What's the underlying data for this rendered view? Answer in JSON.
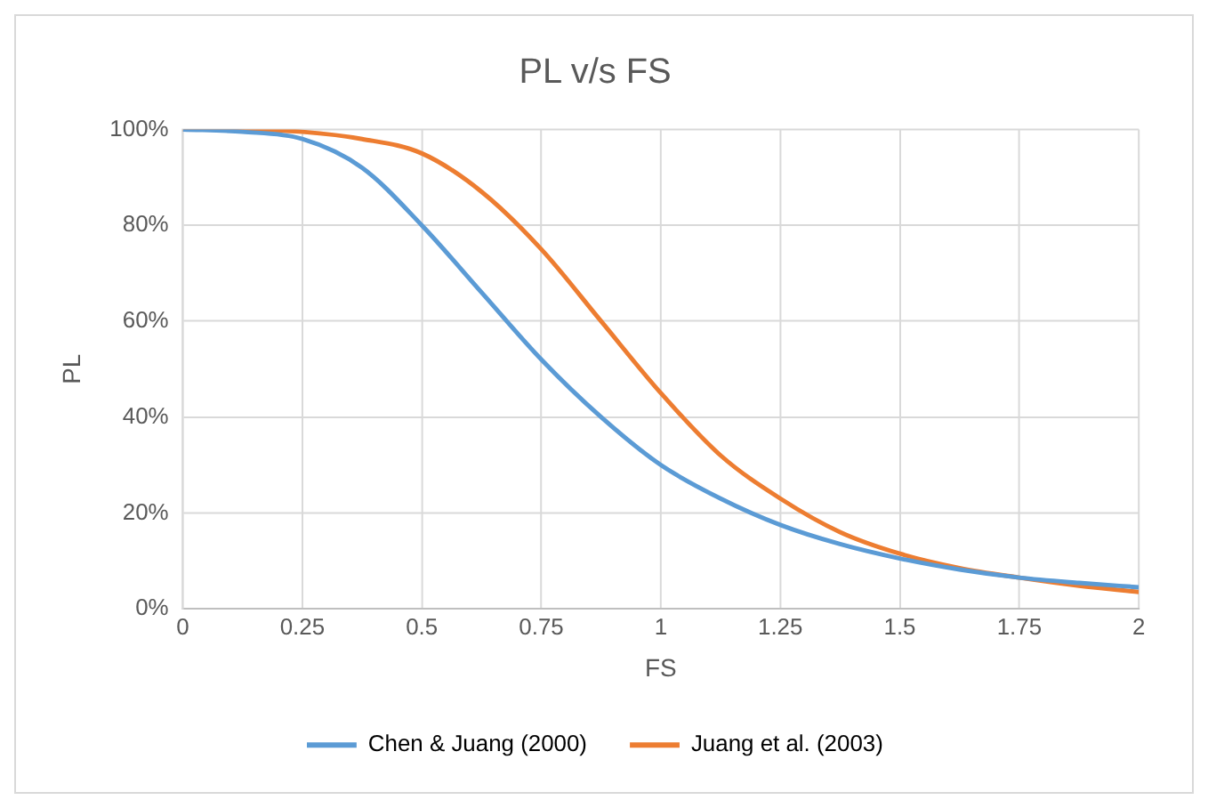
{
  "chart_data": {
    "type": "line",
    "title": "PL v/s FS",
    "xlabel": "FS",
    "ylabel": "PL",
    "xlim": [
      0,
      2
    ],
    "xticks": [
      0,
      0.25,
      0.5,
      0.75,
      1,
      1.25,
      1.5,
      1.75,
      2
    ],
    "ylim": [
      0,
      100
    ],
    "yticks": [
      {
        "value": 0,
        "label": "0%"
      },
      {
        "value": 20,
        "label": "20%"
      },
      {
        "value": 40,
        "label": "40%"
      },
      {
        "value": 60,
        "label": "60%"
      },
      {
        "value": 80,
        "label": "80%"
      },
      {
        "value": 100,
        "label": "100%"
      }
    ],
    "grid": true,
    "legend": "bottom",
    "marker": "none",
    "line_style": "solid",
    "series": [
      {
        "name": "Chen & Juang (2000)",
        "color": "#5b9bd5",
        "x": [
          0,
          0.125,
          0.25,
          0.375,
          0.5,
          0.625,
          0.75,
          0.875,
          1,
          1.125,
          1.25,
          1.375,
          1.5,
          1.625,
          1.75,
          1.875,
          2
        ],
        "values": [
          100,
          99.5,
          98,
          92,
          80,
          66,
          52,
          40,
          30,
          23,
          17.5,
          13.5,
          10.5,
          8.2,
          6.5,
          5.4,
          4.5
        ]
      },
      {
        "name": "Juang et al. (2003)",
        "color": "#ed7d31",
        "x": [
          0,
          0.125,
          0.25,
          0.375,
          0.5,
          0.625,
          0.75,
          0.875,
          1,
          1.125,
          1.25,
          1.375,
          1.5,
          1.625,
          1.75,
          1.875,
          2
        ],
        "values": [
          100,
          100,
          99.5,
          98,
          95,
          87,
          75,
          60,
          45,
          32,
          23,
          16,
          11.5,
          8.5,
          6.5,
          4.8,
          3.5
        ]
      }
    ]
  }
}
